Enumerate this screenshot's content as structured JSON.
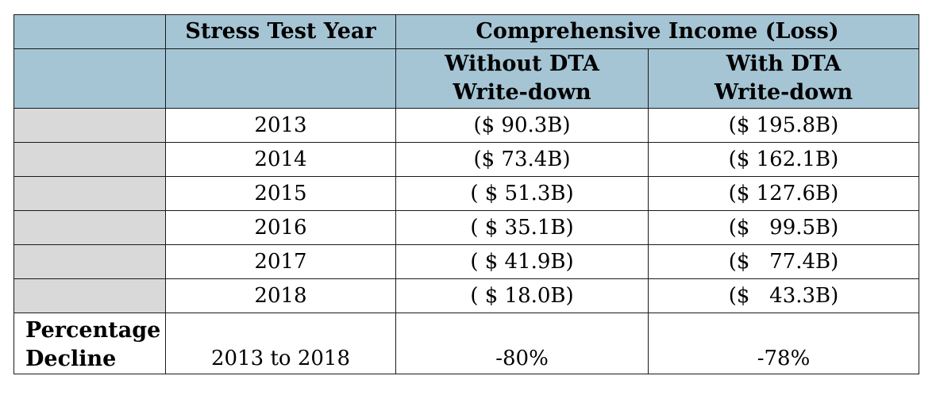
{
  "table": {
    "header": {
      "stress_test_year": "Stress Test Year",
      "comprehensive_income": "Comprehensive Income (Loss)",
      "without_dta": [
        "Without DTA",
        "Write-down"
      ],
      "with_dta": [
        "With DTA",
        "Write-down"
      ]
    },
    "rows": [
      {
        "year": "2013",
        "without": "($ 90.3B)",
        "with": "($ 195.8B)"
      },
      {
        "year": "2014",
        "without": "($ 73.4B)",
        "with": "($ 162.1B)"
      },
      {
        "year": "2015",
        "without": "( $ 51.3B)",
        "with": "($ 127.6B)"
      },
      {
        "year": "2016",
        "without": "( $ 35.1B)",
        "with": "($   99.5B)"
      },
      {
        "year": "2017",
        "without": "( $ 41.9B)",
        "with": "($   77.4B)"
      },
      {
        "year": "2018",
        "without": "( $ 18.0B)",
        "with": "($   43.3B)"
      }
    ],
    "footer": {
      "label": [
        "Percentage",
        "Decline"
      ],
      "period": "2013 to 2018",
      "without_pct": "-80%",
      "with_pct": "-78%"
    },
    "colors": {
      "header_blue": "#a5c5d5",
      "side_gray": "#d9d9d9"
    }
  }
}
